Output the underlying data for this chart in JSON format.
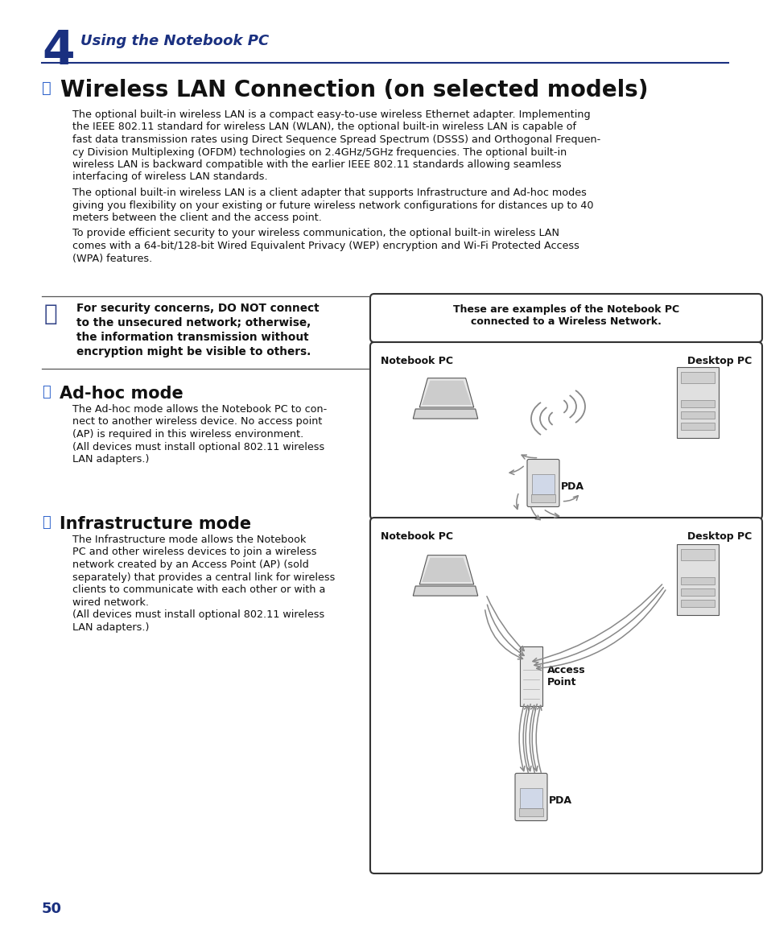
{
  "bg_color": "#ffffff",
  "chapter_number": "4",
  "chapter_title": "Using the Notebook PC",
  "chapter_title_color": "#1a3080",
  "section_title": "Wireless LAN Connection (on selected models)",
  "body_text_color": "#111111",
  "body_para1_lines": [
    "The optional built-in wireless LAN is a compact easy-to-use wireless Ethernet adapter. Implementing",
    "the IEEE 802.11 standard for wireless LAN (WLAN), the optional built-in wireless LAN is capable of",
    "fast data transmission rates using Direct Sequence Spread Spectrum (DSSS) and Orthogonal Frequen-",
    "cy Division Multiplexing (OFDM) technologies on 2.4GHz/5GHz frequencies. The optional built-in",
    "wireless LAN is backward compatible with the earlier IEEE 802.11 standards allowing seamless",
    "interfacing of wireless LAN standards."
  ],
  "body_para2_lines": [
    "The optional built-in wireless LAN is a client adapter that supports Infrastructure and Ad-hoc modes",
    "giving you flexibility on your existing or future wireless network configurations for distances up to 40",
    "meters between the client and the access point."
  ],
  "body_para3_lines": [
    "To provide efficient security to your wireless communication, the optional built-in wireless LAN",
    "comes with a 64-bit/128-bit Wired Equivalent Privacy (WEP) encryption and Wi-Fi Protected Access",
    "(WPA) features."
  ],
  "warning_lines": [
    "For security concerns, DO NOT connect",
    "to the unsecured network; otherwise,",
    "the information transmission without",
    "encryption might be visible to others."
  ],
  "diagram_note_lines": [
    "These are examples of the Notebook PC",
    "connected to a Wireless Network."
  ],
  "adhoc_title": "Ad-hoc mode",
  "adhoc_body_lines": [
    "The Ad-hoc mode allows the Notebook PC to con-",
    "nect to another wireless device. No access point",
    "(AP) is required in this wireless environment.",
    "(All devices must install optional 802.11 wireless",
    "LAN adapters.)"
  ],
  "infra_title": "Infrastructure mode",
  "infra_body_lines": [
    "The Infrastructure mode allows the Notebook",
    "PC and other wireless devices to join a wireless",
    "network created by an Access Point (AP) (sold",
    "separately) that provides a central link for wireless",
    "clients to communicate with each other or with a",
    "wired network.",
    "(All devices must install optional 802.11 wireless",
    "LAN adapters.)"
  ],
  "page_number": "50",
  "page_number_color": "#1a3080",
  "line_color": "#1a3080"
}
